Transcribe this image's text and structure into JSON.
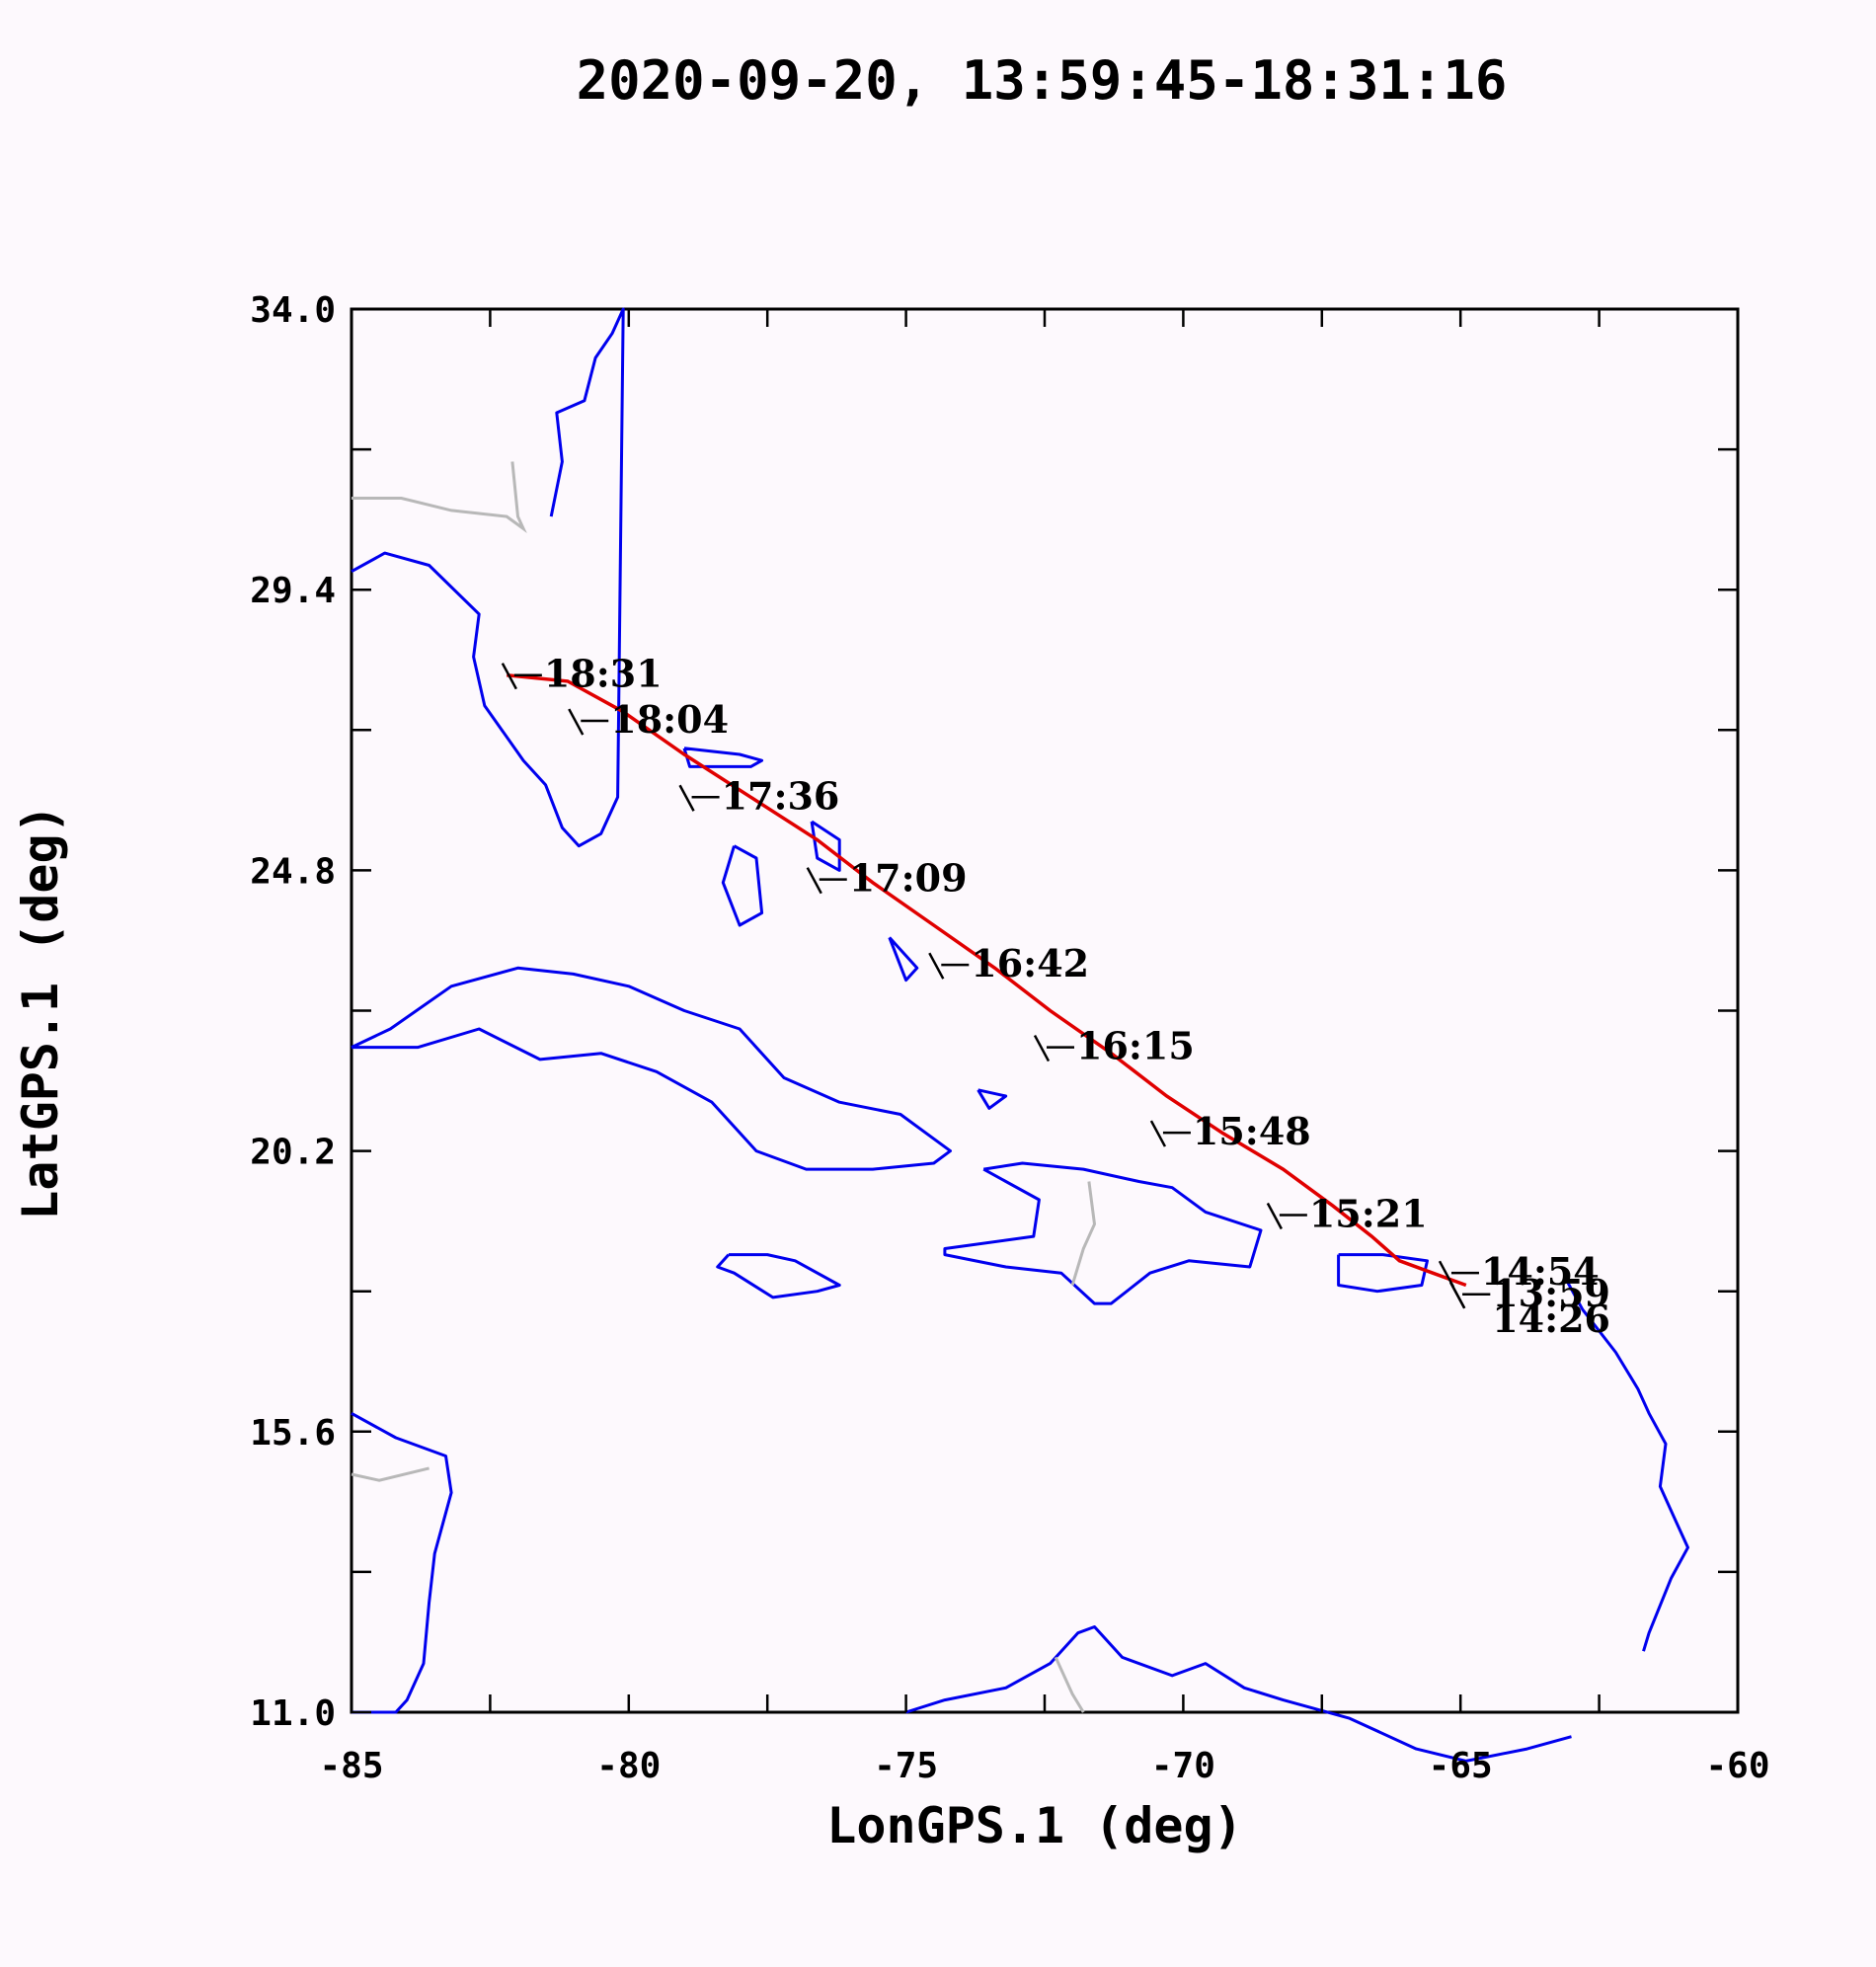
{
  "title": "2020-09-20, 13:59:45-18:31:16",
  "chart_data": {
    "type": "line",
    "xlabel": "LonGPS.1 (deg)",
    "ylabel": "LatGPS.1 (deg)",
    "xlim": [
      -85,
      -60
    ],
    "ylim": [
      11.0,
      34.0
    ],
    "x_ticks": [
      -85,
      -80,
      -75,
      -70,
      -65,
      -60
    ],
    "x_tick_labels": [
      "-85",
      "-80",
      "-75",
      "-70",
      "-65",
      "-60"
    ],
    "y_ticks": [
      11.0,
      15.6,
      20.2,
      24.8,
      29.4,
      34.0
    ],
    "y_tick_labels": [
      "11.0",
      "15.6",
      "20.2",
      "24.8",
      "29.4",
      "34.0"
    ],
    "grid": false,
    "series": [
      {
        "color": "#e00000",
        "x": [
          -64.9,
          -65.5,
          -66.1,
          -66.6,
          -67.3,
          -68.2,
          -69.3,
          -70.3,
          -71.3,
          -72.4,
          -73.4,
          -74.5,
          -75.6,
          -76.6,
          -77.8,
          -79.0,
          -80.1,
          -81.1,
          -82.2
        ],
        "y": [
          18.0,
          18.2,
          18.4,
          18.8,
          19.3,
          19.9,
          20.5,
          21.1,
          21.8,
          22.5,
          23.2,
          23.9,
          24.6,
          25.3,
          26.0,
          26.7,
          27.4,
          27.9,
          28.0
        ]
      }
    ],
    "annotations": [
      {
        "text": "18:31",
        "x": -82.1,
        "y": 28.0
      },
      {
        "text": "18:04",
        "x": -80.9,
        "y": 27.25
      },
      {
        "text": "17:36",
        "x": -78.9,
        "y": 26.0
      },
      {
        "text": "17:09",
        "x": -76.6,
        "y": 24.65
      },
      {
        "text": "16:42",
        "x": -74.4,
        "y": 23.25
      },
      {
        "text": "16:15",
        "x": -72.5,
        "y": 21.9
      },
      {
        "text": "15:48",
        "x": -70.4,
        "y": 20.5
      },
      {
        "text": "15:21",
        "x": -68.3,
        "y": 19.15
      },
      {
        "text": "14:54",
        "x": -65.2,
        "y": 18.2
      },
      {
        "text": "13:59",
        "x": -65.0,
        "y": 17.85
      },
      {
        "text": "14:26",
        "x": -65.0,
        "y": 17.85
      }
    ]
  },
  "map": {
    "coastline_color": "#0000ee",
    "border_color": "#b8b8b8",
    "coastlines": [
      {
        "name": "us-east-coast",
        "lon": [
          -81.4,
          -81.2,
          -81.3,
          -80.8,
          -80.6,
          -80.3,
          -80.1,
          -80.2,
          -80.5,
          -80.9,
          -81.2,
          -81.5,
          -81.9,
          -82.6,
          -82.8,
          -82.7,
          -83.6,
          -84.4,
          -85.0
        ],
        "lat": [
          30.6,
          31.5,
          32.3,
          32.5,
          33.2,
          33.6,
          34.0,
          26.0,
          25.4,
          25.2,
          25.5,
          26.2,
          26.6,
          27.5,
          28.3,
          29.0,
          29.8,
          30.0,
          29.7
        ]
      },
      {
        "name": "cuba",
        "lon": [
          -85.0,
          -84.3,
          -83.2,
          -82.0,
          -81.0,
          -80.0,
          -79.0,
          -78.0,
          -77.2,
          -76.2,
          -75.1,
          -74.2,
          -74.5,
          -75.6,
          -76.8,
          -77.7,
          -78.5,
          -79.5,
          -80.5,
          -81.6,
          -82.7,
          -83.8,
          -85.0
        ],
        "lat": [
          21.9,
          22.2,
          22.9,
          23.2,
          23.1,
          22.9,
          22.5,
          22.2,
          21.4,
          21.0,
          20.8,
          20.2,
          20.0,
          19.9,
          19.9,
          20.2,
          21.0,
          21.5,
          21.8,
          21.7,
          22.2,
          21.9,
          21.9
        ]
      },
      {
        "name": "hispaniola",
        "lon": [
          -73.6,
          -72.9,
          -71.8,
          -70.8,
          -70.2,
          -69.6,
          -68.6,
          -68.8,
          -69.9,
          -70.6,
          -71.3,
          -71.6,
          -72.2,
          -73.2,
          -74.3,
          -74.3,
          -72.7,
          -72.6,
          -73.6
        ],
        "lat": [
          19.9,
          20.0,
          19.9,
          19.7,
          19.6,
          19.2,
          18.9,
          18.3,
          18.4,
          18.2,
          17.7,
          17.7,
          18.2,
          18.3,
          18.5,
          18.6,
          18.8,
          19.4,
          19.9
        ]
      },
      {
        "name": "jamaica",
        "lon": [
          -78.2,
          -77.5,
          -77.0,
          -76.2,
          -76.6,
          -77.4,
          -78.1,
          -78.4,
          -78.2
        ],
        "lat": [
          18.5,
          18.5,
          18.4,
          18.0,
          17.9,
          17.8,
          18.2,
          18.3,
          18.5
        ]
      },
      {
        "name": "puerto-rico",
        "lon": [
          -67.2,
          -66.4,
          -65.6,
          -65.7,
          -66.5,
          -67.2,
          -67.2
        ],
        "lat": [
          18.5,
          18.5,
          18.4,
          18.0,
          17.9,
          18.0,
          18.5
        ]
      },
      {
        "name": "andros",
        "lon": [
          -78.1,
          -77.7,
          -77.6,
          -78.0,
          -78.3,
          -78.1
        ],
        "lat": [
          25.2,
          25.0,
          24.1,
          23.9,
          24.6,
          25.2
        ]
      },
      {
        "name": "grand-bahama",
        "lon": [
          -79.0,
          -78.0,
          -77.6,
          -77.8,
          -78.9,
          -79.0
        ],
        "lat": [
          26.8,
          26.7,
          26.6,
          26.5,
          26.5,
          26.8
        ]
      },
      {
        "name": "eleuthera",
        "lon": [
          -76.7,
          -76.2,
          -76.2,
          -76.6,
          -76.7
        ],
        "lat": [
          25.6,
          25.3,
          24.8,
          25.0,
          25.6
        ]
      },
      {
        "name": "long-island",
        "lon": [
          -75.3,
          -74.8,
          -75.0,
          -75.3
        ],
        "lat": [
          23.7,
          23.2,
          23.0,
          23.7
        ]
      },
      {
        "name": "inagua",
        "lon": [
          -73.7,
          -73.2,
          -73.5,
          -73.7
        ],
        "lat": [
          21.2,
          21.1,
          20.9,
          21.2
        ]
      },
      {
        "name": "central-america",
        "lon": [
          -85.0,
          -84.2,
          -83.3,
          -83.2,
          -83.5,
          -83.6,
          -83.7,
          -84.0,
          -84.2,
          -85.0
        ],
        "lat": [
          15.9,
          15.5,
          15.2,
          14.6,
          13.6,
          12.8,
          11.8,
          11.2,
          11.0,
          11.0
        ]
      },
      {
        "name": "colombia-venezuela",
        "lon": [
          -75.0,
          -74.3,
          -73.2,
          -72.4,
          -71.9,
          -71.6,
          -71.1,
          -70.2,
          -69.6,
          -68.9,
          -68.2,
          -67.0,
          -65.8,
          -64.9,
          -63.8,
          -63.0
        ],
        "lat": [
          11.0,
          11.2,
          11.4,
          11.8,
          12.3,
          12.4,
          11.9,
          11.6,
          11.8,
          11.4,
          11.2,
          10.9,
          10.4,
          10.2,
          10.4,
          10.6
        ]
      },
      {
        "name": "lesser-antilles",
        "lon": [
          -63.1,
          -62.8,
          -62.2,
          -61.8,
          -61.6,
          -61.3,
          -61.4,
          -61.1,
          -60.9,
          -61.2,
          -61.6,
          -61.7
        ],
        "lat": [
          18.1,
          17.6,
          16.9,
          16.3,
          15.9,
          15.4,
          14.7,
          14.1,
          13.7,
          13.2,
          12.3,
          12.0
        ]
      }
    ],
    "borders": [
      {
        "name": "fl-ga-border",
        "lon": [
          -85.0,
          -84.1,
          -83.2,
          -82.2,
          -81.9,
          -82.0,
          -82.1
        ],
        "lat": [
          30.9,
          30.9,
          30.7,
          30.6,
          30.4,
          30.6,
          31.5
        ]
      },
      {
        "name": "haiti-dr-border",
        "lon": [
          -71.7,
          -71.6,
          -71.8,
          -72.0
        ],
        "lat": [
          19.7,
          19.0,
          18.6,
          18.0
        ]
      },
      {
        "name": "honduras-border",
        "lon": [
          -85.0,
          -84.5,
          -83.6
        ],
        "lat": [
          14.9,
          14.8,
          15.0
        ]
      },
      {
        "name": "colombia-border",
        "lon": [
          -72.3,
          -72.0,
          -71.8
        ],
        "lat": [
          11.9,
          11.3,
          11.0
        ]
      }
    ]
  }
}
